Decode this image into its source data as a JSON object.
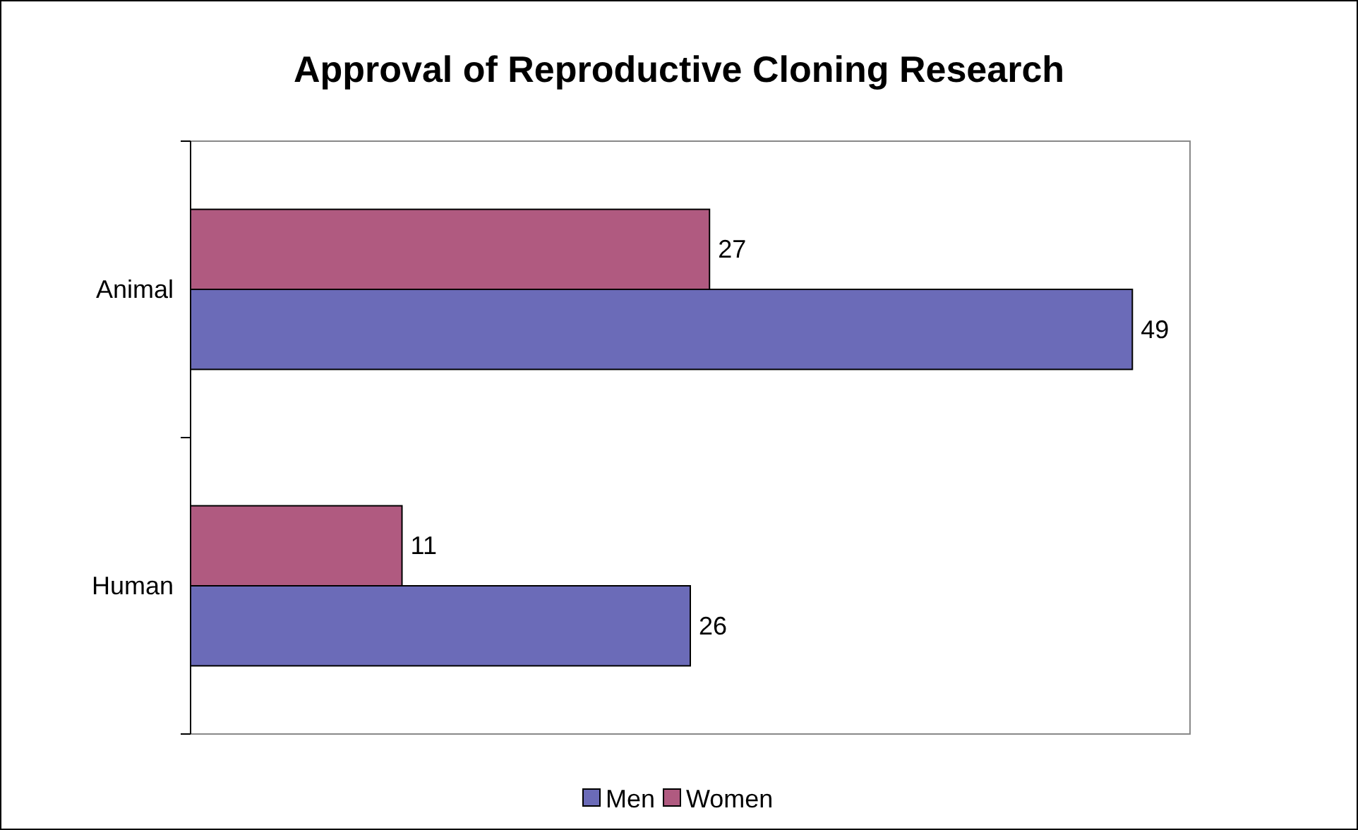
{
  "chart_data": {
    "type": "bar",
    "orientation": "horizontal",
    "title": "Approval of Reproductive Cloning Research",
    "categories": [
      "Animal",
      "Human"
    ],
    "series": [
      {
        "name": "Men",
        "color": "#6b6bb8",
        "values": [
          49,
          26
        ]
      },
      {
        "name": "Women",
        "color": "#b05a80",
        "values": [
          27,
          11
        ]
      }
    ],
    "xlim": [
      0,
      52
    ],
    "data_labels": true,
    "legend": "bottom"
  }
}
